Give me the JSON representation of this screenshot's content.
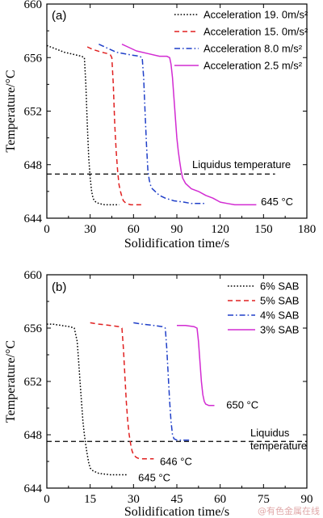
{
  "watermark": "@有色金属在线",
  "chart_data": [
    {
      "type": "line",
      "panel_label": "(a)",
      "xlabel": "Solidification time/s",
      "ylabel": "Temperature/°C",
      "xlim": [
        0,
        180
      ],
      "ylim": [
        644,
        660
      ],
      "xticks": [
        "0",
        "30",
        "60",
        "90",
        "120",
        "150",
        "180"
      ],
      "yticks": [
        "644",
        "648",
        "652",
        "656",
        "660"
      ],
      "legend_position": "top-right",
      "series": [
        {
          "name": "Acceleration 19. 0m/s²",
          "color": "#000000",
          "dash": "dotted",
          "x": [
            0,
            5,
            12,
            20,
            24,
            26,
            27,
            28,
            29,
            30,
            31,
            32,
            33,
            34,
            36,
            40,
            45,
            50
          ],
          "y": [
            656.9,
            656.7,
            656.4,
            656.2,
            656.1,
            656.0,
            654.0,
            651.0,
            648.5,
            647.0,
            646.0,
            645.5,
            645.3,
            645.2,
            645.1,
            645.0,
            645.0,
            645.0
          ]
        },
        {
          "name": "Acceleration 15. 0m/s²",
          "color": "#e02020",
          "dash": "dashed",
          "x": [
            28,
            32,
            38,
            42,
            44,
            45,
            46,
            47,
            48,
            49,
            50,
            51,
            52,
            53,
            55,
            58,
            62,
            66
          ],
          "y": [
            656.8,
            656.6,
            656.4,
            656.3,
            656.2,
            656.0,
            654.0,
            651.0,
            649.0,
            647.5,
            646.5,
            646.0,
            645.6,
            645.3,
            645.1,
            645.0,
            645.0,
            645.0
          ]
        },
        {
          "name": "Acceleration 8.0 m/s²",
          "color": "#1f3fc8",
          "dash": "dashdot",
          "x": [
            36,
            40,
            48,
            58,
            64,
            66,
            67,
            68,
            69,
            70,
            71,
            72,
            73,
            75,
            78,
            82,
            88,
            95,
            100,
            110
          ],
          "y": [
            657.0,
            656.8,
            656.4,
            656.2,
            656.1,
            656.0,
            654.5,
            652.0,
            649.5,
            647.5,
            646.8,
            646.4,
            646.2,
            646.0,
            645.7,
            645.5,
            645.3,
            645.2,
            645.1,
            645.1
          ]
        },
        {
          "name": "Acceleration 2.5 m/s²",
          "color": "#d22bd2",
          "dash": "solid",
          "x": [
            52,
            56,
            62,
            70,
            78,
            83,
            85,
            86,
            87,
            88,
            89,
            90,
            91,
            92,
            93,
            94,
            96,
            100,
            105,
            110,
            115,
            120,
            125,
            130,
            135,
            140,
            145
          ],
          "y": [
            657.0,
            656.8,
            656.5,
            656.3,
            656.1,
            656.1,
            656.0,
            655.5,
            654.5,
            653.0,
            651.5,
            650.0,
            649.0,
            648.2,
            647.5,
            647.0,
            646.6,
            646.2,
            646.0,
            645.7,
            645.5,
            645.2,
            645.1,
            645.0,
            645.0,
            645.0,
            645.0
          ]
        }
      ],
      "reference_line": {
        "label": "Liquidus temperature",
        "y": 647.3,
        "xmin": 0,
        "xmax": 158
      },
      "annotations": [
        {
          "text": "645 °C",
          "x": 146,
          "y": 645.2
        }
      ]
    },
    {
      "type": "line",
      "panel_label": "(b)",
      "xlabel": "Solidification time/s",
      "ylabel": "Temperature/°C",
      "xlim": [
        0,
        90
      ],
      "ylim": [
        644,
        660
      ],
      "xticks": [
        "0",
        "15",
        "30",
        "45",
        "60",
        "75",
        "90"
      ],
      "yticks": [
        "644",
        "648",
        "652",
        "656",
        "660"
      ],
      "legend_position": "top-right",
      "series": [
        {
          "name": "6% SAB",
          "color": "#000000",
          "dash": "dotted",
          "x": [
            0,
            2,
            5,
            8,
            9.5,
            10.5,
            11,
            11.5,
            12,
            12.5,
            13,
            13.5,
            14,
            14.5,
            15,
            16,
            18,
            22,
            26,
            28
          ],
          "y": [
            656.3,
            656.3,
            656.2,
            656.1,
            656.0,
            655.0,
            653.5,
            652.0,
            650.5,
            649.0,
            648.0,
            647.2,
            646.5,
            645.9,
            645.5,
            645.3,
            645.1,
            645.0,
            645.0,
            645.0
          ]
        },
        {
          "name": "5% SAB",
          "color": "#e02020",
          "dash": "dashed",
          "x": [
            15,
            18,
            22,
            25,
            26,
            26.5,
            27,
            27.5,
            28,
            28.5,
            29,
            29.5,
            30,
            31,
            32,
            34,
            37
          ],
          "y": [
            656.4,
            656.3,
            656.2,
            656.1,
            656.0,
            654.5,
            652.5,
            650.5,
            649.0,
            648.0,
            647.3,
            646.8,
            646.5,
            646.3,
            646.2,
            646.2,
            646.2
          ]
        },
        {
          "name": "4% SAB",
          "color": "#1f3fc8",
          "dash": "dashdot",
          "x": [
            30,
            33,
            37,
            40,
            41,
            41.5,
            42,
            42.5,
            43,
            43.5,
            44,
            45,
            47,
            50
          ],
          "y": [
            656.4,
            656.3,
            656.2,
            656.1,
            656.0,
            654.5,
            652.5,
            650.5,
            649.0,
            648.0,
            647.7,
            647.6,
            647.6,
            647.6
          ]
        },
        {
          "name": "3% SAB",
          "color": "#d22bd2",
          "dash": "solid",
          "x": [
            45,
            48,
            51,
            52,
            52.5,
            53,
            53.5,
            54,
            54.5,
            55,
            56,
            58
          ],
          "y": [
            656.2,
            656.2,
            656.1,
            656.0,
            655.0,
            653.5,
            652.0,
            651.0,
            650.5,
            650.3,
            650.2,
            650.2
          ]
        }
      ],
      "reference_line": {
        "label": [
          "Liquidus",
          "temperature"
        ],
        "y": 647.5,
        "xmin": 0,
        "xmax": 90
      },
      "annotations": [
        {
          "text": "650 °C",
          "x": 61,
          "y": 650.2
        },
        {
          "text": "646 °C",
          "x": 38,
          "y": 646.2
        },
        {
          "text": "645 °C",
          "x": 30.5,
          "y": 645.0
        }
      ]
    }
  ]
}
